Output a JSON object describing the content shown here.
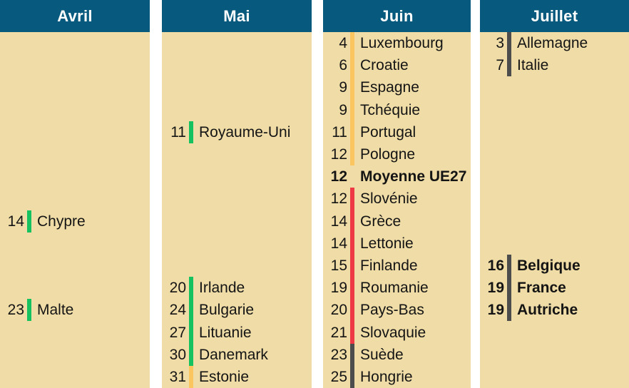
{
  "colors": {
    "header_background": "#075A7D",
    "header_text": "#FFFFFF",
    "column_background": "#EFDCA6",
    "page_background": "#FFFFFF",
    "text": "#141414"
  },
  "chart_data": {
    "type": "table",
    "columns": [
      "Avril",
      "Mai",
      "Juin",
      "Juillet"
    ],
    "rows_per_column": 16,
    "legend_colors": {
      "green": "#16C15F",
      "orange": "#FBC55F",
      "red": "#EE3A44",
      "gray": "#4D4D4D"
    },
    "months": [
      {
        "label": "Avril",
        "entries": [
          {
            "row": 9,
            "day": "14",
            "name": "Chypre",
            "color": "green",
            "bold": false
          },
          {
            "row": 13,
            "day": "23",
            "name": "Malte",
            "color": "green",
            "bold": false
          }
        ]
      },
      {
        "label": "Mai",
        "entries": [
          {
            "row": 5,
            "day": "11",
            "name": "Royaume-Uni",
            "color": "green",
            "bold": false
          },
          {
            "row": 12,
            "day": "20",
            "name": "Irlande",
            "color": "green",
            "bold": false
          },
          {
            "row": 13,
            "day": "24",
            "name": "Bulgarie",
            "color": "green",
            "bold": false
          },
          {
            "row": 14,
            "day": "27",
            "name": "Lituanie",
            "color": "green",
            "bold": false
          },
          {
            "row": 15,
            "day": "30",
            "name": "Danemark",
            "color": "green",
            "bold": false
          },
          {
            "row": 16,
            "day": "31",
            "name": "Estonie",
            "color": "orange",
            "bold": false
          }
        ]
      },
      {
        "label": "Juin",
        "entries": [
          {
            "row": 1,
            "day": "4",
            "name": "Luxembourg",
            "color": "orange",
            "bold": false
          },
          {
            "row": 2,
            "day": "6",
            "name": "Croatie",
            "color": "orange",
            "bold": false
          },
          {
            "row": 3,
            "day": "9",
            "name": "Espagne",
            "color": "orange",
            "bold": false
          },
          {
            "row": 4,
            "day": "9",
            "name": "Tchéquie",
            "color": "orange",
            "bold": false
          },
          {
            "row": 5,
            "day": "11",
            "name": "Portugal",
            "color": "orange",
            "bold": false
          },
          {
            "row": 6,
            "day": "12",
            "name": "Pologne",
            "color": "orange",
            "bold": false
          },
          {
            "row": 7,
            "day": "12",
            "name": "Moyenne UE27",
            "color": "none",
            "bold": true
          },
          {
            "row": 8,
            "day": "12",
            "name": "Slovénie",
            "color": "red",
            "bold": false
          },
          {
            "row": 9,
            "day": "14",
            "name": "Grèce",
            "color": "red",
            "bold": false
          },
          {
            "row": 10,
            "day": "14",
            "name": "Lettonie",
            "color": "red",
            "bold": false
          },
          {
            "row": 11,
            "day": "15",
            "name": "Finlande",
            "color": "red",
            "bold": false
          },
          {
            "row": 12,
            "day": "19",
            "name": "Roumanie",
            "color": "red",
            "bold": false
          },
          {
            "row": 13,
            "day": "20",
            "name": "Pays-Bas",
            "color": "red",
            "bold": false
          },
          {
            "row": 14,
            "day": "21",
            "name": "Slovaquie",
            "color": "red",
            "bold": false
          },
          {
            "row": 15,
            "day": "23",
            "name": "Suède",
            "color": "gray",
            "bold": false
          },
          {
            "row": 16,
            "day": "25",
            "name": "Hongrie",
            "color": "gray",
            "bold": false
          }
        ]
      },
      {
        "label": "Juillet",
        "entries": [
          {
            "row": 1,
            "day": "3",
            "name": "Allemagne",
            "color": "gray",
            "bold": false
          },
          {
            "row": 2,
            "day": "7",
            "name": "Italie",
            "color": "gray",
            "bold": false
          },
          {
            "row": 11,
            "day": "16",
            "name": "Belgique",
            "color": "gray",
            "bold": true
          },
          {
            "row": 12,
            "day": "19",
            "name": "France",
            "color": "gray",
            "bold": true
          },
          {
            "row": 13,
            "day": "19",
            "name": "Autriche",
            "color": "gray",
            "bold": true
          }
        ]
      }
    ]
  }
}
